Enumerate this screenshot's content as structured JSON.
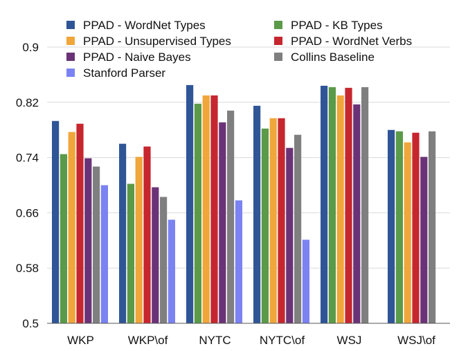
{
  "chart_data": {
    "type": "bar",
    "title": "",
    "xlabel": "",
    "ylabel": "",
    "ylim": [
      0.5,
      0.9
    ],
    "yticks": [
      "0.5",
      "0.58",
      "0.66",
      "0.74",
      "0.82",
      "0.9"
    ],
    "grid": true,
    "legend_position": "top",
    "categories": [
      "WKP",
      "WKP\\of",
      "NYTC",
      "NYTC\\of",
      "WSJ",
      "WSJ\\of"
    ],
    "series": [
      {
        "name": "PPAD - WordNet Types",
        "color": "#2f5597",
        "values": [
          0.793,
          0.76,
          0.845,
          0.815,
          0.844,
          0.78
        ]
      },
      {
        "name": "PPAD - KB Types",
        "color": "#5b9a48",
        "values": [
          0.745,
          0.702,
          0.818,
          0.782,
          0.842,
          0.778
        ]
      },
      {
        "name": "PPAD - Unsupervised Types",
        "color": "#f0a63a",
        "values": [
          0.777,
          0.741,
          0.83,
          0.797,
          0.83,
          0.762
        ]
      },
      {
        "name": "PPAD - WordNet Verbs",
        "color": "#c6262e",
        "values": [
          0.789,
          0.756,
          0.83,
          0.797,
          0.841,
          0.776
        ]
      },
      {
        "name": "PPAD - Naive Bayes",
        "color": "#6b3377",
        "values": [
          0.739,
          0.697,
          0.791,
          0.754,
          0.817,
          0.741
        ]
      },
      {
        "name": "Collins Baseline",
        "color": "#7f7f7f",
        "values": [
          0.727,
          0.683,
          0.808,
          0.773,
          0.842,
          0.778
        ]
      },
      {
        "name": "Stanford Parser",
        "color": "#7b82f2",
        "values": [
          0.7,
          0.65,
          0.678,
          0.621,
          null,
          null
        ]
      }
    ]
  }
}
